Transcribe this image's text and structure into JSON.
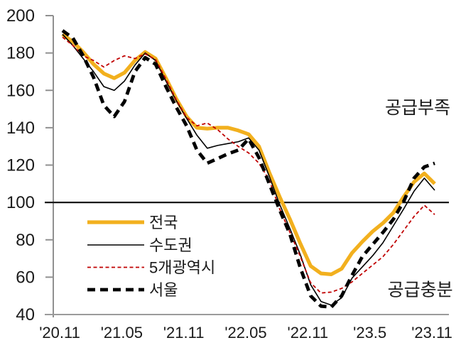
{
  "page": {
    "background": "#ffffff"
  },
  "chart_data": {
    "type": "line",
    "title": "",
    "xlabel": "",
    "ylabel": "",
    "ylim": [
      40,
      200
    ],
    "y_ticks": [
      40,
      60,
      80,
      100,
      120,
      140,
      160,
      180,
      200
    ],
    "reference_line": 100,
    "grid": false,
    "x_start_label": "'20.11",
    "x_end_label": "'23.11",
    "n_points": 37,
    "x_tick_labels": [
      "'20.11",
      "'21.05",
      "'21.11",
      "'22.05",
      "'22.11",
      "'23.5",
      "'23.11"
    ],
    "x_tick_indices": [
      0,
      6,
      12,
      18,
      24,
      30,
      36
    ],
    "axis_color": "#909090",
    "reference_line_color": "#1a1a1a",
    "legend_position": "inside-lower-left",
    "series": [
      {
        "id": "nationwide",
        "name": "전국",
        "color": "#F2B01E",
        "style": "solid-thick",
        "values": [
          190,
          186,
          180.5,
          174,
          169,
          166.5,
          169.5,
          176,
          180.5,
          177,
          166.5,
          155.5,
          146,
          140,
          139.5,
          140,
          140,
          138.5,
          136.5,
          130,
          116,
          103,
          91,
          78,
          66,
          62,
          61.5,
          64.5,
          73,
          79,
          84.5,
          89,
          94.5,
          103,
          111,
          115.5,
          110
        ]
      },
      {
        "id": "capital_area",
        "name": "수도권",
        "color": "#000000",
        "style": "solid-thin",
        "values": [
          190,
          184,
          177,
          170,
          162,
          160,
          165,
          173.5,
          180,
          176,
          165,
          154.5,
          145,
          136,
          129,
          130.5,
          131.5,
          132.5,
          134.5,
          128,
          114,
          99,
          86,
          72,
          56,
          47,
          45,
          49,
          59.5,
          65.5,
          71.5,
          78.5,
          87.5,
          96.5,
          106,
          113,
          106.5
        ]
      },
      {
        "id": "five_metro_cities",
        "name": "5개광역시",
        "color": "#C00000",
        "style": "dashed-thin",
        "values": [
          188.5,
          184,
          178.5,
          176,
          172.5,
          176,
          178.5,
          177,
          179.5,
          176.5,
          166,
          155,
          145.5,
          141,
          142.5,
          139,
          134,
          130,
          126.5,
          121,
          112,
          96.5,
          84,
          71,
          57,
          51.5,
          52,
          54,
          57.5,
          62,
          66.5,
          71,
          77.5,
          85,
          92.5,
          98.5,
          93.5
        ]
      },
      {
        "id": "seoul",
        "name": "서울",
        "color": "#000000",
        "style": "dashed-thick",
        "values": [
          192,
          188,
          178.5,
          167,
          152,
          146,
          154,
          170,
          177.5,
          174,
          162,
          151,
          141,
          128,
          121,
          123.5,
          126,
          128,
          134,
          124,
          110,
          96,
          83,
          65,
          50,
          44.5,
          44,
          50,
          61,
          71,
          77.5,
          84,
          91,
          100.5,
          113,
          119,
          121
        ]
      }
    ],
    "annotations": [
      {
        "id": "supply_shortage",
        "text": "공급부족",
        "x_month": 34.35,
        "y_value": 151
      },
      {
        "id": "supply_sufficient",
        "text": "공급충분",
        "x_month": 34.6,
        "y_value": 53.5
      }
    ]
  }
}
